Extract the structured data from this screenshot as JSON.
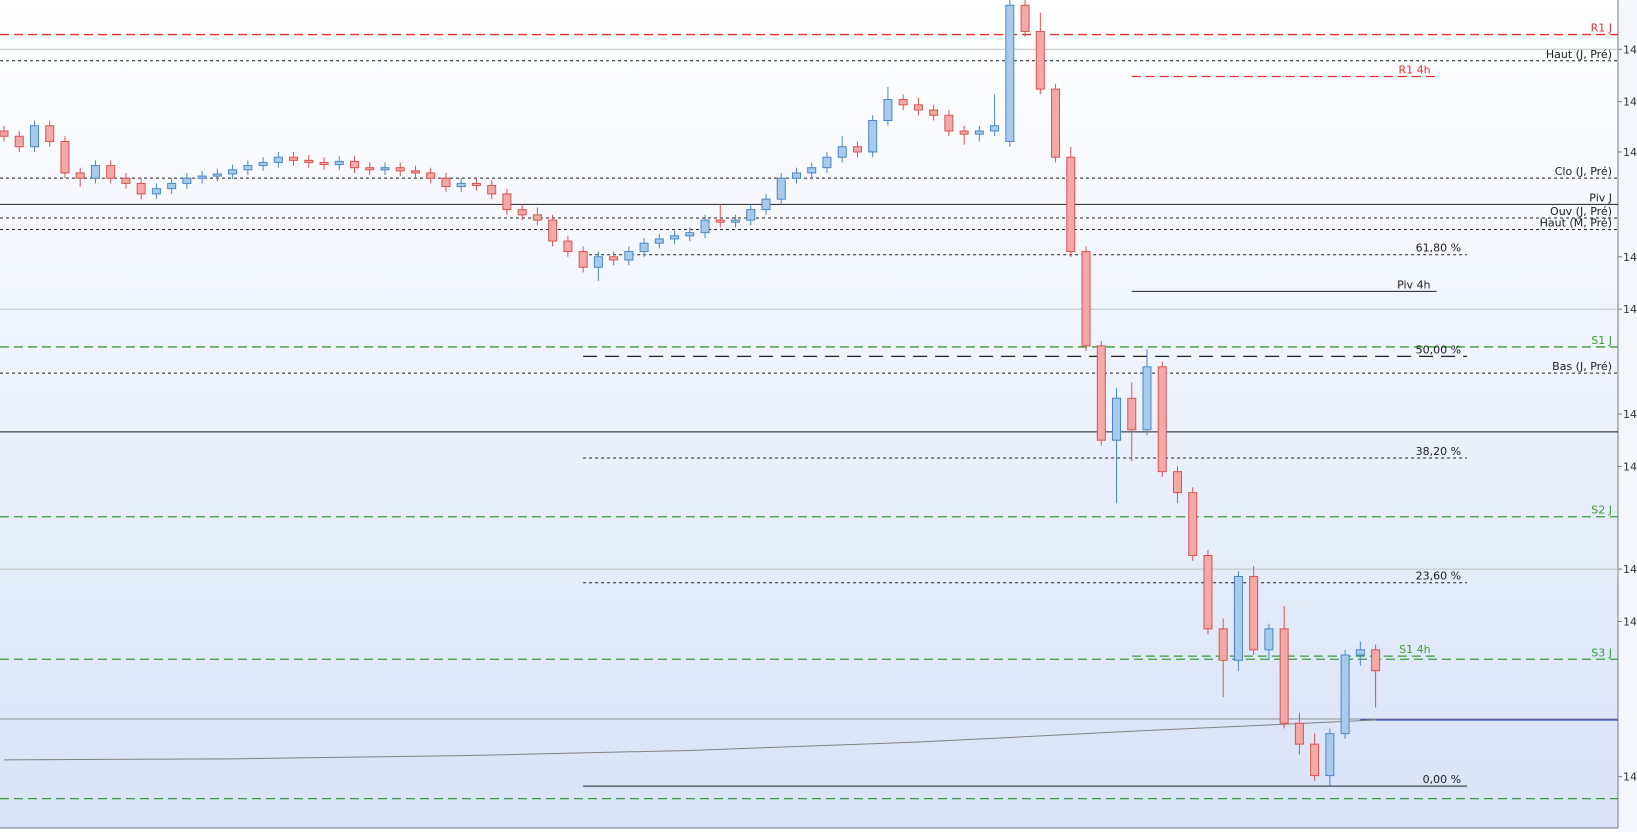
{
  "chart_data": {
    "type": "candlestick",
    "up_color": "#4a86c5",
    "up_fill": "#a9cbeb",
    "down_color": "#d9534f",
    "down_fill": "#f2a9a7",
    "ylim": [
      0,
      790
    ],
    "xlim": [
      0,
      110
    ],
    "yticks": [
      {
        "value": 743,
        "label": "14"
      },
      {
        "value": 693,
        "label": "14"
      },
      {
        "value": 645,
        "label": "14"
      },
      {
        "value": 545,
        "label": "14"
      },
      {
        "value": 495,
        "label": "14"
      },
      {
        "value": 395,
        "label": "14"
      },
      {
        "value": 345,
        "label": "14"
      },
      {
        "value": 247,
        "label": "14"
      },
      {
        "value": 197,
        "label": "14"
      },
      {
        "value": 49,
        "label": "14"
      }
    ],
    "candles": [
      [
        665,
        670,
        655,
        660
      ],
      [
        660,
        665,
        645,
        650
      ],
      [
        650,
        675,
        645,
        670
      ],
      [
        670,
        675,
        650,
        655
      ],
      [
        655,
        660,
        620,
        625
      ],
      [
        625,
        630,
        612,
        620
      ],
      [
        620,
        637,
        615,
        632
      ],
      [
        632,
        637,
        615,
        620
      ],
      [
        620,
        625,
        610,
        615
      ],
      [
        615,
        620,
        600,
        605
      ],
      [
        605,
        615,
        600,
        610
      ],
      [
        610,
        620,
        605,
        615
      ],
      [
        615,
        625,
        610,
        620
      ],
      [
        620,
        627,
        615,
        622
      ],
      [
        622,
        629,
        617,
        624
      ],
      [
        624,
        633,
        619,
        628
      ],
      [
        628,
        637,
        623,
        632
      ],
      [
        632,
        640,
        627,
        635
      ],
      [
        635,
        645,
        630,
        640
      ],
      [
        640,
        645,
        632,
        637
      ],
      [
        637,
        642,
        630,
        635
      ],
      [
        635,
        640,
        628,
        633
      ],
      [
        633,
        641,
        628,
        636
      ],
      [
        636,
        641,
        625,
        630
      ],
      [
        630,
        635,
        623,
        628
      ],
      [
        628,
        635,
        623,
        630
      ],
      [
        630,
        635,
        622,
        627
      ],
      [
        627,
        632,
        620,
        625
      ],
      [
        625,
        630,
        615,
        620
      ],
      [
        620,
        625,
        607,
        612
      ],
      [
        612,
        620,
        607,
        615
      ],
      [
        615,
        620,
        608,
        613
      ],
      [
        613,
        618,
        600,
        605
      ],
      [
        605,
        610,
        585,
        590
      ],
      [
        590,
        595,
        580,
        585
      ],
      [
        585,
        592,
        575,
        580
      ],
      [
        580,
        585,
        555,
        560
      ],
      [
        560,
        565,
        545,
        550
      ],
      [
        550,
        555,
        530,
        535
      ],
      [
        535,
        550,
        522,
        545
      ],
      [
        545,
        550,
        537,
        542
      ],
      [
        542,
        555,
        537,
        550
      ],
      [
        550,
        563,
        545,
        558
      ],
      [
        558,
        567,
        553,
        562
      ],
      [
        562,
        570,
        557,
        565
      ],
      [
        565,
        573,
        560,
        568
      ],
      [
        568,
        585,
        563,
        580
      ],
      [
        580,
        595,
        573,
        578
      ],
      [
        578,
        585,
        573,
        580
      ],
      [
        580,
        595,
        575,
        590
      ],
      [
        590,
        605,
        585,
        600
      ],
      [
        600,
        625,
        595,
        620
      ],
      [
        620,
        630,
        615,
        625
      ],
      [
        625,
        635,
        620,
        630
      ],
      [
        630,
        645,
        625,
        640
      ],
      [
        640,
        660,
        635,
        650
      ],
      [
        650,
        655,
        640,
        645
      ],
      [
        645,
        680,
        640,
        675
      ],
      [
        675,
        707,
        670,
        695
      ],
      [
        695,
        700,
        685,
        690
      ],
      [
        690,
        697,
        680,
        685
      ],
      [
        685,
        690,
        675,
        680
      ],
      [
        680,
        685,
        660,
        665
      ],
      [
        665,
        670,
        652,
        662
      ],
      [
        662,
        670,
        655,
        665
      ],
      [
        665,
        700,
        660,
        670
      ],
      [
        655,
        790,
        650,
        785
      ],
      [
        785,
        790,
        755,
        760
      ],
      [
        760,
        778,
        700,
        705
      ],
      [
        705,
        710,
        635,
        640
      ],
      [
        640,
        650,
        545,
        550
      ],
      [
        550,
        555,
        455,
        460
      ],
      [
        460,
        465,
        365,
        370
      ],
      [
        370,
        420,
        310,
        410
      ],
      [
        410,
        425,
        350,
        380
      ],
      [
        380,
        457,
        375,
        440
      ],
      [
        440,
        445,
        335,
        340
      ],
      [
        340,
        345,
        310,
        320
      ],
      [
        320,
        325,
        255,
        260
      ],
      [
        260,
        265,
        185,
        190
      ],
      [
        190,
        200,
        125,
        160
      ],
      [
        160,
        245,
        150,
        240
      ],
      [
        240,
        250,
        165,
        170
      ],
      [
        170,
        195,
        160,
        190
      ],
      [
        190,
        212,
        95,
        100
      ],
      [
        100,
        110,
        70,
        80
      ],
      [
        80,
        90,
        45,
        50
      ],
      [
        50,
        95,
        40,
        90
      ],
      [
        90,
        170,
        85,
        165
      ],
      [
        165,
        178,
        155,
        170
      ],
      [
        170,
        175,
        115,
        150
      ]
    ],
    "moving_average": {
      "color": "#808080",
      "x": [
        0,
        15,
        30,
        45,
        60,
        75,
        90
      ],
      "values": [
        65,
        66,
        69,
        74,
        82,
        93,
        103
      ]
    },
    "levels": [
      {
        "value": 743,
        "color": "#c0c0c0",
        "dash": "solid"
      },
      {
        "value": 495,
        "color": "#c0c0c0",
        "dash": "solid"
      },
      {
        "value": 247,
        "color": "#c0c0c0",
        "dash": "solid"
      },
      {
        "value": 104,
        "color": "#909090",
        "dash": "solid"
      },
      {
        "label": "R1 J",
        "value": 757,
        "color": "#e03030",
        "dash": "dashed"
      },
      {
        "label": "Haut (J, Pré)",
        "value": 732,
        "color": "#202020",
        "dash": "dotted"
      },
      {
        "label": "R1 4h",
        "value": 717,
        "color": "#e03030",
        "dash": "dashed",
        "start": 74,
        "end": 94
      },
      {
        "label": "Clo (J, Pré)",
        "value": 620,
        "color": "#202020",
        "dash": "dotted"
      },
      {
        "label": "Piv J",
        "value": 595,
        "color": "#202020",
        "dash": "solid"
      },
      {
        "label": "Ouv (J, Pré)",
        "value": 582,
        "color": "#202020",
        "dash": "dotted"
      },
      {
        "label": "Haut (M, Pré)",
        "value": 571,
        "color": "#202020",
        "dash": "dotted"
      },
      {
        "label": "61,80 %",
        "value": 547,
        "color": "#202020",
        "dash": "dotted",
        "start": 38,
        "end": 96
      },
      {
        "label": "Piv 4h",
        "value": 512,
        "color": "#202020",
        "dash": "solid",
        "start": 74,
        "end": 94
      },
      {
        "label": "S1 J",
        "value": 459,
        "color": "#3a9a3a",
        "dash": "dashed"
      },
      {
        "label": "50,00 %",
        "value": 450,
        "color": "#202020",
        "dash": "longdash",
        "start": 38,
        "end": 96
      },
      {
        "label": "Bas (J, Pré)",
        "value": 434,
        "color": "#202020",
        "dash": "dotted"
      },
      {
        "value": 378,
        "color": "#202020",
        "dash": "solid"
      },
      {
        "label": "38,20 %",
        "value": 353,
        "color": "#202020",
        "dash": "dotted",
        "start": 38,
        "end": 96
      },
      {
        "label": "S2 J",
        "value": 297,
        "color": "#3a9a3a",
        "dash": "dashed"
      },
      {
        "label": "23,60 %",
        "value": 234,
        "color": "#202020",
        "dash": "dotted",
        "start": 38,
        "end": 96
      },
      {
        "label": "S1 4h",
        "value": 164,
        "color": "#3a9a3a",
        "dash": "dashed",
        "start": 74,
        "end": 94
      },
      {
        "label": "S3 J",
        "value": 161,
        "color": "#3a9a3a",
        "dash": "dashed"
      },
      {
        "value": 103,
        "color": "#0a2ab0",
        "dash": "solid",
        "start": 89
      },
      {
        "label": "0,00 %",
        "value": 40,
        "color": "#202020",
        "dash": "solid",
        "start": 38,
        "end": 96
      },
      {
        "value": 28,
        "color": "#3a9a3a",
        "dash": "dashed"
      }
    ]
  }
}
